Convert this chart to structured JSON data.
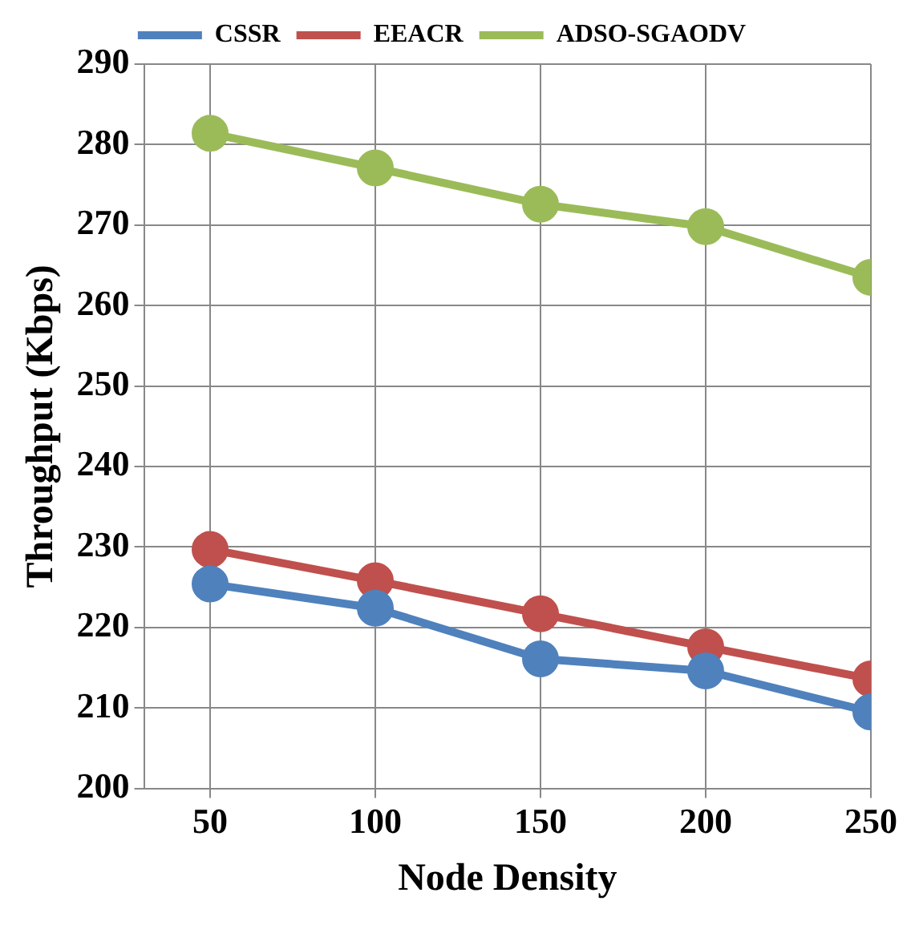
{
  "chart_data": {
    "type": "line",
    "xlabel": "Node Density",
    "ylabel": "Throughput (Kbps)",
    "x": [
      50,
      100,
      150,
      200,
      250
    ],
    "xlim": [
      30,
      250
    ],
    "xticks": [
      50,
      100,
      150,
      200,
      250
    ],
    "ylim": [
      200,
      290
    ],
    "yticks": [
      200,
      210,
      220,
      230,
      240,
      250,
      260,
      270,
      280,
      290
    ],
    "series": [
      {
        "name": "CSSR",
        "color": "#4f81bd",
        "values": [
          225.4,
          222.4,
          216.1,
          214.6,
          209.5
        ]
      },
      {
        "name": "EEACR",
        "color": "#c0504d",
        "values": [
          229.7,
          225.8,
          221.7,
          217.6,
          213.6
        ]
      },
      {
        "name": "ADSO-SGAODV",
        "color": "#9bbb59",
        "values": [
          281.4,
          277.1,
          272.6,
          269.8,
          263.5
        ]
      }
    ],
    "grid": true,
    "legend": "top",
    "marker": "circle",
    "line_style": "solid"
  }
}
